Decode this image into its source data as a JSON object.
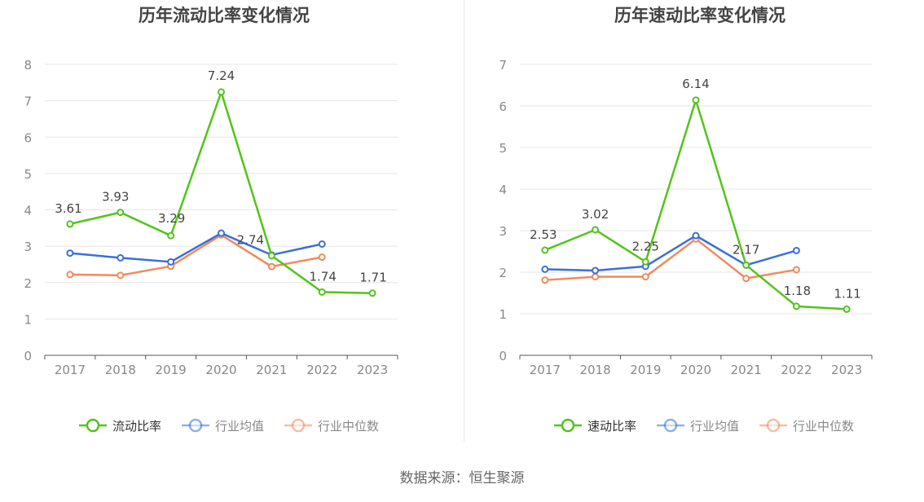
{
  "source_text": "数据来源：恒生聚源",
  "colors": {
    "company": "#52c41a",
    "avg": "#3a6fd8",
    "median": "#f08a5d"
  },
  "chart_data": [
    {
      "type": "line",
      "title": "历年流动比率变化情况",
      "categories": [
        "2017",
        "2018",
        "2019",
        "2020",
        "2021",
        "2022",
        "2023"
      ],
      "ylim": [
        0,
        8
      ],
      "yticks": [
        "0",
        "1",
        "2",
        "3",
        "4",
        "5",
        "6",
        "7",
        "8"
      ],
      "grid": true,
      "legend_position": "bottom",
      "series": [
        {
          "name": "流动比率",
          "values": [
            3.61,
            3.93,
            3.29,
            7.24,
            2.74,
            1.74,
            1.71
          ],
          "labels": [
            "3.61",
            "3.93",
            "3.29",
            "7.24",
            "2.74",
            "1.74",
            "1.71"
          ]
        },
        {
          "name": "行业均值",
          "values": [
            2.81,
            2.68,
            2.57,
            3.36,
            2.76,
            3.06,
            null
          ]
        },
        {
          "name": "行业中位数",
          "values": [
            2.22,
            2.2,
            2.45,
            3.31,
            2.44,
            2.7,
            null
          ]
        }
      ]
    },
    {
      "type": "line",
      "title": "历年速动比率变化情况",
      "categories": [
        "2017",
        "2018",
        "2019",
        "2020",
        "2021",
        "2022",
        "2023"
      ],
      "ylim": [
        0,
        7
      ],
      "yticks": [
        "0",
        "1",
        "2",
        "3",
        "4",
        "5",
        "6",
        "7"
      ],
      "grid": true,
      "legend_position": "bottom",
      "series": [
        {
          "name": "速动比率",
          "values": [
            2.53,
            3.02,
            2.25,
            6.14,
            2.17,
            1.18,
            1.11
          ],
          "labels": [
            "2.53",
            "3.02",
            "2.25",
            "6.14",
            "2.17",
            "1.18",
            "1.11"
          ]
        },
        {
          "name": "行业均值",
          "values": [
            2.07,
            2.04,
            2.14,
            2.88,
            2.17,
            2.52,
            null
          ]
        },
        {
          "name": "行业中位数",
          "values": [
            1.81,
            1.89,
            1.89,
            2.8,
            1.85,
            2.06,
            null
          ]
        }
      ]
    }
  ]
}
